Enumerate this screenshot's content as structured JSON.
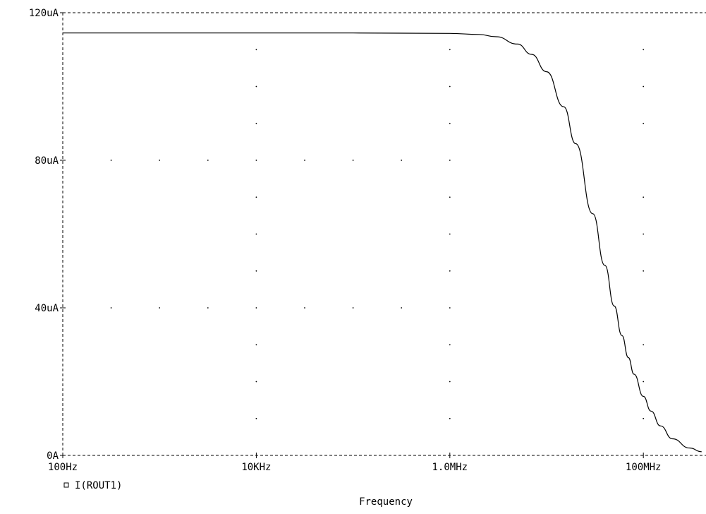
{
  "chart_data": {
    "type": "line",
    "xlabel": "Frequency",
    "ylabel": "",
    "x_scale": "log",
    "xlim": [
      100,
      400000000
    ],
    "ylim": [
      0,
      120
    ],
    "x_ticks": [
      {
        "value": 100,
        "label": "100Hz"
      },
      {
        "value": 10000,
        "label": "10KHz"
      },
      {
        "value": 1000000,
        "label": "1.0MHz"
      },
      {
        "value": 100000000,
        "label": "100MHz"
      }
    ],
    "y_ticks": [
      {
        "value": 0,
        "label": "0A"
      },
      {
        "value": 40,
        "label": "40uA"
      },
      {
        "value": 80,
        "label": "80uA"
      },
      {
        "value": 120,
        "label": "120uA"
      }
    ],
    "y_unit": "uA",
    "grid": "dotted",
    "legend_position": "bottom-left",
    "series": [
      {
        "name": "I(ROUT1)",
        "marker": "square",
        "color": "#000000",
        "x": [
          100,
          1000,
          10000,
          100000,
          1000000,
          2000000,
          3000000,
          5000000,
          7000000,
          10000000,
          15000000,
          20000000,
          30000000,
          40000000,
          50000000,
          60000000,
          70000000,
          80000000,
          100000000,
          120000000,
          150000000,
          200000000,
          300000000,
          400000000
        ],
        "values": [
          114.5,
          114.5,
          114.5,
          114.5,
          114.4,
          114.1,
          113.5,
          111.5,
          108.7,
          104.0,
          94.5,
          84.5,
          65.5,
          51.5,
          40.5,
          32.5,
          26.5,
          22.0,
          16.0,
          12.0,
          8.0,
          4.5,
          2.0,
          1.0
        ]
      }
    ]
  }
}
